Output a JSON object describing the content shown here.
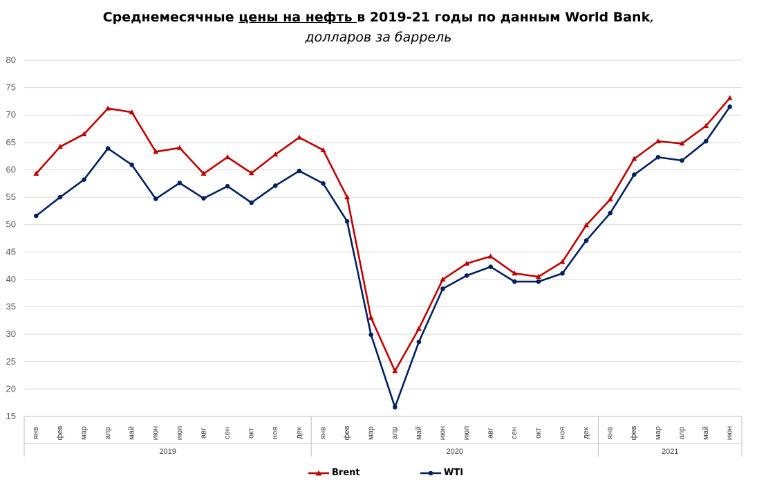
{
  "title": {
    "part1": "Среднемесячные ",
    "part2_underlined": "цены на нефть ",
    "part3": "в 2019-21 годы по данным World Bank",
    "part4": ",",
    "subtitle": "долларов за баррель"
  },
  "colors": {
    "brent": "#C00000",
    "wti": "#002060",
    "grid": "#d9d9d9",
    "axis": "#bfbfbf"
  },
  "chart_data": {
    "type": "line",
    "title": "Среднемесячные цены на нефть в 2019-21 годы по данным World Bank, долларов за баррель",
    "ylim": [
      15,
      80
    ],
    "yticks": [
      15,
      20,
      25,
      30,
      35,
      40,
      45,
      50,
      55,
      60,
      65,
      70,
      75,
      80
    ],
    "grid": true,
    "legend": "bottom",
    "categories": [
      "янв",
      "фев",
      "мар",
      "апр",
      "май",
      "июн",
      "июл",
      "авг",
      "сен",
      "окт",
      "ноя",
      "дек",
      "янв",
      "фев",
      "мар",
      "апр",
      "май",
      "июн",
      "июл",
      "авг",
      "сен",
      "окт",
      "ноя",
      "дек",
      "янв",
      "фев",
      "мар",
      "апр",
      "май",
      "июн"
    ],
    "groups": [
      {
        "label": "2019",
        "count": 12
      },
      {
        "label": "2020",
        "count": 12
      },
      {
        "label": "2021",
        "count": 6
      }
    ],
    "series": [
      {
        "name": "Brent",
        "marker": "triangle",
        "values": [
          59.3,
          64.2,
          66.5,
          71.2,
          70.5,
          63.3,
          64.0,
          59.3,
          62.3,
          59.4,
          62.8,
          65.9,
          63.6,
          55.0,
          33.0,
          23.3,
          31.0,
          40.0,
          42.9,
          44.2,
          41.1,
          40.5,
          43.2,
          49.9,
          54.6,
          62.0,
          65.2,
          64.8,
          68.0,
          73.1
        ]
      },
      {
        "name": "WTI",
        "marker": "circle",
        "values": [
          51.6,
          55.0,
          58.2,
          63.9,
          60.9,
          54.7,
          57.6,
          54.8,
          57.0,
          54.0,
          57.1,
          59.8,
          57.5,
          50.6,
          29.9,
          16.7,
          28.6,
          38.3,
          40.7,
          42.3,
          39.6,
          39.6,
          41.1,
          47.1,
          52.1,
          59.1,
          62.3,
          61.7,
          65.2,
          71.5
        ]
      }
    ]
  }
}
